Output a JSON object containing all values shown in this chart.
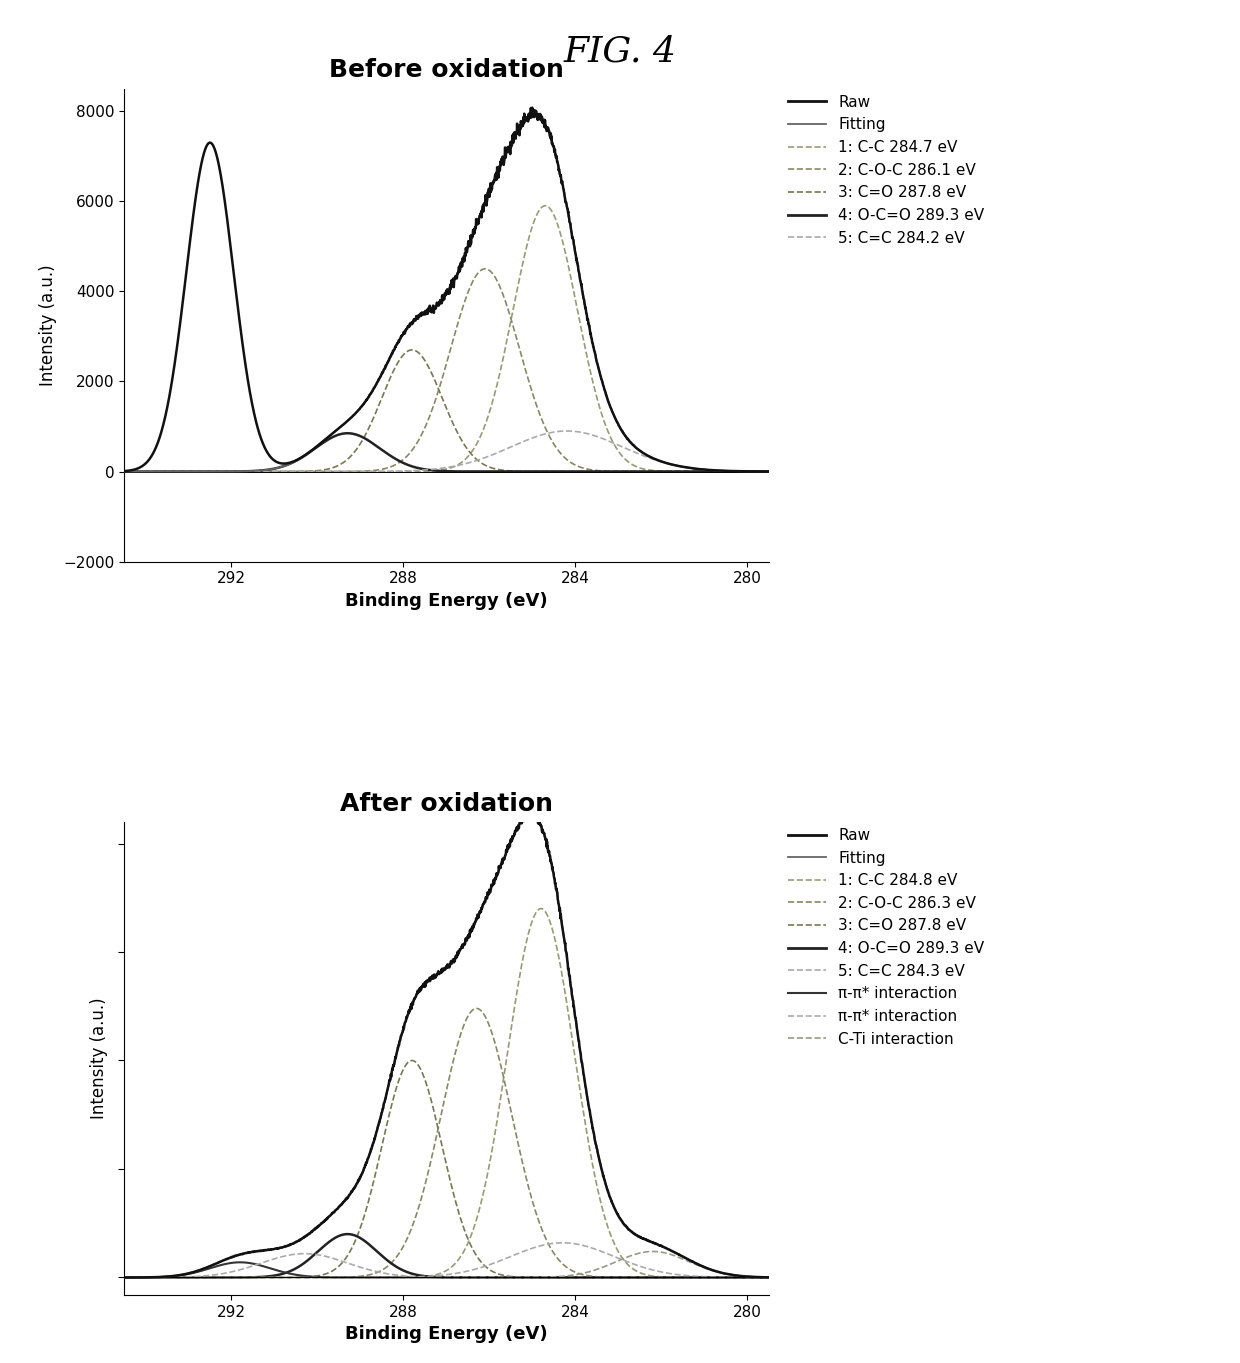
{
  "fig_title": "FIG. 4",
  "panel1_title": "Before oxidation",
  "panel2_title": "After oxidation",
  "xlabel": "Binding Energy (eV)",
  "ylabel": "Intensity (a.u.)",
  "x_min": 279.5,
  "x_max": 294.5,
  "x_ticks": [
    292,
    288,
    284,
    280
  ],
  "panel1_ylim": [
    -2000,
    8500
  ],
  "panel1_yticks": [
    -2000,
    0,
    2000,
    4000,
    6000,
    8000
  ],
  "colors": {
    "raw": "#111111",
    "fitting": "#666666",
    "peak1": "#999977",
    "peak2": "#888866",
    "peak3": "#777755",
    "peak4": "#222222",
    "peak5": "#aaaaaa",
    "pi1": "#333333",
    "pi2": "#aaaaaa",
    "cti": "#999988"
  },
  "panel1_legend": [
    {
      "label": "Raw",
      "color": "#111111",
      "lw": 2.0,
      "ls": "-"
    },
    {
      "label": "Fitting",
      "color": "#666666",
      "lw": 1.2,
      "ls": "-"
    },
    {
      "label": "1: C-C 284.7 eV",
      "color": "#999977",
      "lw": 1.2,
      "ls": "--"
    },
    {
      "label": "2: C-O-C 286.1 eV",
      "color": "#888866",
      "lw": 1.2,
      "ls": "--"
    },
    {
      "label": "3: C=O 287.8 eV",
      "color": "#777755",
      "lw": 1.2,
      "ls": "--"
    },
    {
      "label": "4: O-C=O 289.3 eV",
      "color": "#222222",
      "lw": 2.0,
      "ls": "-"
    },
    {
      "label": "5: C=C 284.2 eV",
      "color": "#aaaaaa",
      "lw": 1.2,
      "ls": "--"
    }
  ],
  "panel2_legend": [
    {
      "label": "Raw",
      "color": "#111111",
      "lw": 2.0,
      "ls": "-"
    },
    {
      "label": "Fitting",
      "color": "#666666",
      "lw": 1.2,
      "ls": "-"
    },
    {
      "label": "1: C-C 284.8 eV",
      "color": "#999977",
      "lw": 1.2,
      "ls": "--"
    },
    {
      "label": "2: C-O-C 286.3 eV",
      "color": "#888866",
      "lw": 1.2,
      "ls": "--"
    },
    {
      "label": "3: C=O 287.8 eV",
      "color": "#777755",
      "lw": 1.2,
      "ls": "--"
    },
    {
      "label": "4: O-C=O 289.3 eV",
      "color": "#222222",
      "lw": 2.0,
      "ls": "-"
    },
    {
      "label": "5: C=C 284.3 eV",
      "color": "#aaaaaa",
      "lw": 1.2,
      "ls": "--"
    },
    {
      "label": "π-π* interaction",
      "color": "#333333",
      "lw": 1.5,
      "ls": "-"
    },
    {
      "label": "π-π* interaction",
      "color": "#aaaaaa",
      "lw": 1.2,
      "ls": "--"
    },
    {
      "label": "C-Ti interaction",
      "color": "#999988",
      "lw": 1.2,
      "ls": "--"
    }
  ]
}
